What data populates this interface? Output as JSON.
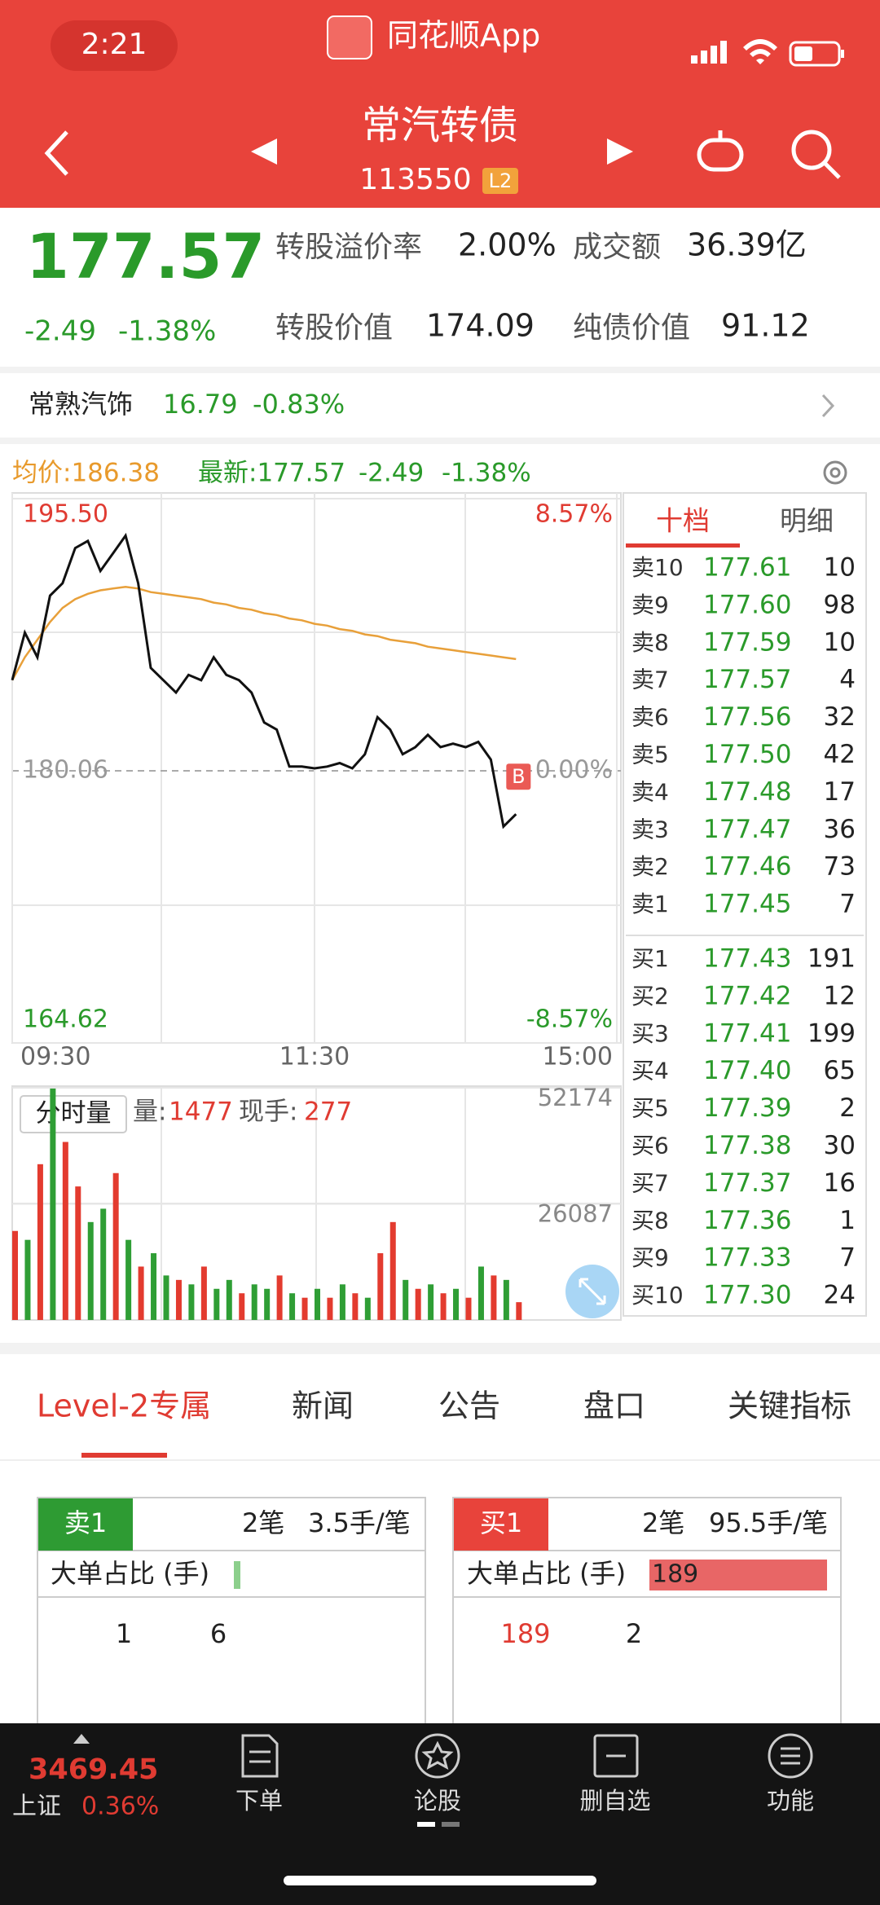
{
  "status": {
    "time": "2:21",
    "app": "同花顺App"
  },
  "header": {
    "title": "常汽转债",
    "code": "113550",
    "badge": "L2"
  },
  "quote": {
    "price": "177.57",
    "change": "-2.49",
    "change_pct": "-1.38%",
    "items": [
      {
        "label": "转股溢价率",
        "value": "2.00%"
      },
      {
        "label": "成交额",
        "value": "36.39亿"
      },
      {
        "label": "转股价值",
        "value": "174.09"
      },
      {
        "label": "纯债价值",
        "value": "91.12"
      }
    ]
  },
  "linked_stock": {
    "name": "常熟汽饰",
    "price": "16.79",
    "change_pct": "-0.83%"
  },
  "chart_data": [
    {
      "type": "line",
      "avg_label": "均价:186.38",
      "latest_label": "最新:177.57",
      "latest_change": "-2.49",
      "latest_pct": "-1.38%",
      "marker": "B",
      "x": [
        0,
        5,
        10,
        15,
        20,
        25,
        30,
        35,
        40,
        45,
        50,
        55,
        60,
        65,
        70,
        75,
        80,
        85,
        90,
        95,
        100,
        105,
        110,
        115,
        120,
        125,
        130,
        135,
        140,
        145,
        150,
        155,
        160,
        165,
        170,
        175,
        180,
        185,
        190,
        195,
        200
      ],
      "xlim": [
        0,
        240
      ],
      "xticks": [
        {
          "value": 0,
          "label": "09:30"
        },
        {
          "value": 120,
          "label": "11:30"
        },
        {
          "value": 240,
          "label": "15:00"
        }
      ],
      "ylim": [
        164.62,
        195.5
      ],
      "yticks": [
        {
          "value": 195.5,
          "label": "195.50"
        },
        180.06,
        164.62
      ],
      "y2lim": [
        -8.57,
        8.57
      ],
      "y2ticks": [
        {
          "value": 8.57,
          "label": "8.57%"
        },
        {
          "value": 0,
          "label": "0.00%"
        },
        {
          "value": -8.57,
          "label": "-8.57%"
        }
      ],
      "series": [
        {
          "color": "#111111",
          "values": [
            185.2,
            187.9,
            186.5,
            190.0,
            190.7,
            192.7,
            193.1,
            191.4,
            192.4,
            193.4,
            190.7,
            185.9,
            185.2,
            184.5,
            185.5,
            185.2,
            186.5,
            185.5,
            185.2,
            184.5,
            182.8,
            182.4,
            180.3,
            180.3,
            180.2,
            180.3,
            180.5,
            180.2,
            181.0,
            183.1,
            182.4,
            181.0,
            181.4,
            182.1,
            181.4,
            181.6,
            181.4,
            181.7,
            180.7,
            176.9,
            177.6
          ]
        },
        {
          "color": "#e8a03a",
          "values": [
            185.2,
            186.5,
            187.5,
            188.5,
            189.3,
            189.8,
            190.1,
            190.3,
            190.4,
            190.5,
            190.4,
            190.2,
            190.1,
            190.0,
            189.9,
            189.8,
            189.6,
            189.5,
            189.3,
            189.2,
            189.0,
            188.9,
            188.7,
            188.6,
            188.4,
            188.3,
            188.1,
            188.0,
            187.8,
            187.7,
            187.5,
            187.4,
            187.3,
            187.1,
            187.0,
            186.9,
            186.8,
            186.7,
            186.6,
            186.5,
            186.4
          ]
        }
      ]
    },
    {
      "type": "bar",
      "title": "分时量",
      "vol_label": "量:",
      "vol": "1477",
      "hand_label": "现手:",
      "hand": "277",
      "x": [
        0,
        5,
        10,
        15,
        20,
        25,
        30,
        35,
        40,
        45,
        50,
        55,
        60,
        65,
        70,
        75,
        80,
        85,
        90,
        95,
        100,
        105,
        110,
        115,
        120,
        125,
        130,
        135,
        140,
        145,
        150,
        155,
        160,
        165,
        170,
        175,
        180,
        185,
        190,
        195,
        200
      ],
      "xlim": [
        0,
        240
      ],
      "ylim": [
        0,
        52174
      ],
      "yticks": [
        52174,
        26087
      ],
      "values": [
        20000,
        18000,
        35000,
        52000,
        40000,
        30000,
        22000,
        25000,
        33000,
        18000,
        12000,
        15000,
        10000,
        9000,
        8000,
        12000,
        7000,
        9000,
        6000,
        8000,
        7000,
        10000,
        6000,
        5000,
        7000,
        5000,
        8000,
        6000,
        5000,
        15000,
        22000,
        9000,
        7000,
        8000,
        6000,
        7000,
        5000,
        12000,
        10000,
        9000,
        4000
      ],
      "colors": [
        "#e33b2f",
        "#2f9e35",
        "#e33b2f",
        "#2f9e35",
        "#e33b2f",
        "#e33b2f",
        "#2f9e35",
        "#2f9e35",
        "#e33b2f",
        "#2f9e35",
        "#e33b2f",
        "#2f9e35",
        "#2f9e35",
        "#e33b2f",
        "#2f9e35",
        "#e33b2f",
        "#2f9e35",
        "#2f9e35",
        "#e33b2f",
        "#2f9e35",
        "#2f9e35",
        "#e33b2f",
        "#2f9e35",
        "#e33b2f",
        "#2f9e35",
        "#e33b2f",
        "#2f9e35",
        "#e33b2f",
        "#2f9e35",
        "#e33b2f",
        "#e33b2f",
        "#2f9e35",
        "#e33b2f",
        "#2f9e35",
        "#e33b2f",
        "#2f9e35",
        "#e33b2f",
        "#2f9e35",
        "#e33b2f",
        "#2f9e35",
        "#e33b2f"
      ]
    }
  ],
  "order_book": {
    "tabs": [
      "十档",
      "明细"
    ],
    "sell": [
      {
        "label": "卖10",
        "price": "177.61",
        "volume": "10"
      },
      {
        "label": "卖9",
        "price": "177.60",
        "volume": "98"
      },
      {
        "label": "卖8",
        "price": "177.59",
        "volume": "10"
      },
      {
        "label": "卖7",
        "price": "177.57",
        "volume": "4"
      },
      {
        "label": "卖6",
        "price": "177.56",
        "volume": "32"
      },
      {
        "label": "卖5",
        "price": "177.50",
        "volume": "42"
      },
      {
        "label": "卖4",
        "price": "177.48",
        "volume": "17"
      },
      {
        "label": "卖3",
        "price": "177.47",
        "volume": "36"
      },
      {
        "label": "卖2",
        "price": "177.46",
        "volume": "73"
      },
      {
        "label": "卖1",
        "price": "177.45",
        "volume": "7"
      }
    ],
    "buy": [
      {
        "label": "买1",
        "price": "177.43",
        "volume": "191"
      },
      {
        "label": "买2",
        "price": "177.42",
        "volume": "12"
      },
      {
        "label": "买3",
        "price": "177.41",
        "volume": "199"
      },
      {
        "label": "买4",
        "price": "177.40",
        "volume": "65"
      },
      {
        "label": "买5",
        "price": "177.39",
        "volume": "2"
      },
      {
        "label": "买6",
        "price": "177.38",
        "volume": "30"
      },
      {
        "label": "买7",
        "price": "177.37",
        "volume": "16"
      },
      {
        "label": "买8",
        "price": "177.36",
        "volume": "1"
      },
      {
        "label": "买9",
        "price": "177.33",
        "volume": "7"
      },
      {
        "label": "买10",
        "price": "177.30",
        "volume": "24"
      }
    ]
  },
  "tabs": [
    "Level-2专属",
    "新闻",
    "公告",
    "盘口",
    "关键指标"
  ],
  "level2": {
    "sell": {
      "label": "卖1",
      "count": "2笔",
      "per": "3.5手/笔",
      "ratio_label": "大单占比 (手)",
      "a": "1",
      "b": "6"
    },
    "buy": {
      "label": "买1",
      "count": "2笔",
      "per": "95.5手/笔",
      "ratio_label": "大单占比 (手)",
      "bar": "189",
      "a": "189",
      "b": "2"
    }
  },
  "bottom_nav": {
    "index_value": "3469.45",
    "index_name": "上证",
    "index_pct": "0.36%",
    "items": [
      "下单",
      "论股",
      "删自选",
      "功能"
    ]
  }
}
